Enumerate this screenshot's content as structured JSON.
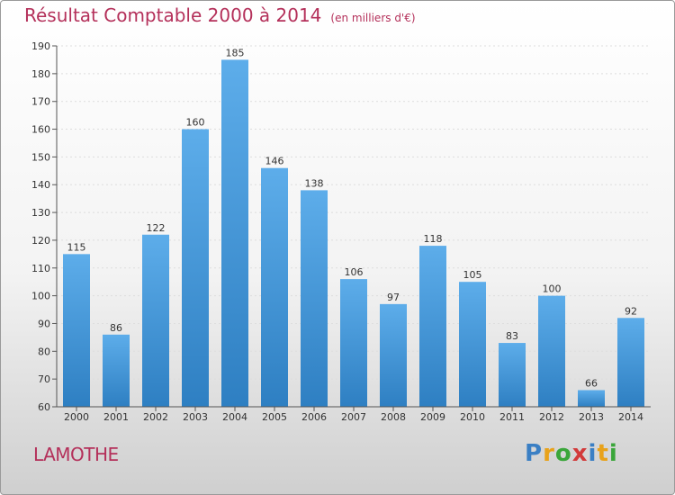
{
  "title": "Résultat Comptable 2000 à 2014",
  "unit": "(en milliers d'€)",
  "commune": "LAMOTHE",
  "logo": {
    "text": "Proxiti",
    "letter_colors": [
      "#3a7fc4",
      "#e8a21a",
      "#3aa63a",
      "#d23a3a",
      "#3a7fc4",
      "#e8a21a",
      "#3aa63a"
    ]
  },
  "colors": {
    "bar_top": "#5dadea",
    "bar_bottom": "#2e7fc2",
    "title": "#b4305a",
    "grid": "#dddddd"
  },
  "chart_data": {
    "type": "bar",
    "title": "Résultat Comptable 2000 à 2014",
    "categories": [
      "2000",
      "2001",
      "2002",
      "2003",
      "2004",
      "2005",
      "2006",
      "2007",
      "2008",
      "2009",
      "2010",
      "2011",
      "2012",
      "2013",
      "2014"
    ],
    "values": [
      115,
      86,
      122,
      160,
      185,
      146,
      138,
      106,
      97,
      118,
      105,
      83,
      100,
      66,
      92
    ],
    "ylim": [
      60,
      190
    ],
    "yticks": [
      60,
      70,
      80,
      90,
      100,
      110,
      120,
      130,
      140,
      150,
      160,
      170,
      180,
      190
    ],
    "grid": true,
    "data_labels": true
  }
}
